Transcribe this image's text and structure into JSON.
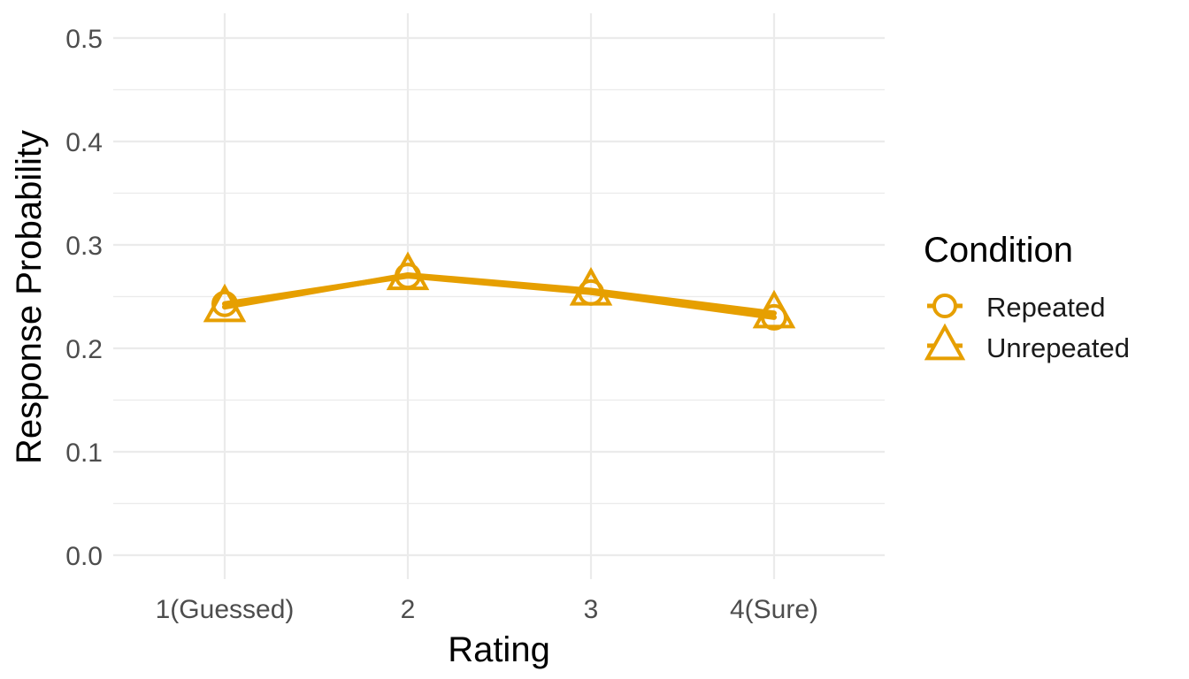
{
  "chart_data": {
    "type": "line",
    "xlabel": "Rating",
    "ylabel": "Response Probability",
    "categories": [
      "1(Guessed)",
      "2",
      "3",
      "4(Sure)"
    ],
    "ylim": [
      0,
      0.5
    ],
    "yticks": [
      "0.0",
      "0.1",
      "0.2",
      "0.3",
      "0.4",
      "0.5"
    ],
    "grid": true,
    "legend_title": "Condition",
    "legend_position": "right",
    "series": [
      {
        "name": "Repeated",
        "marker": "circle",
        "color": "#E69F00",
        "values": [
          0.243,
          0.27,
          0.254,
          0.23
        ]
      },
      {
        "name": "Unrepeated",
        "marker": "triangle",
        "color": "#E69F00",
        "values": [
          0.24,
          0.271,
          0.256,
          0.234
        ]
      }
    ]
  }
}
